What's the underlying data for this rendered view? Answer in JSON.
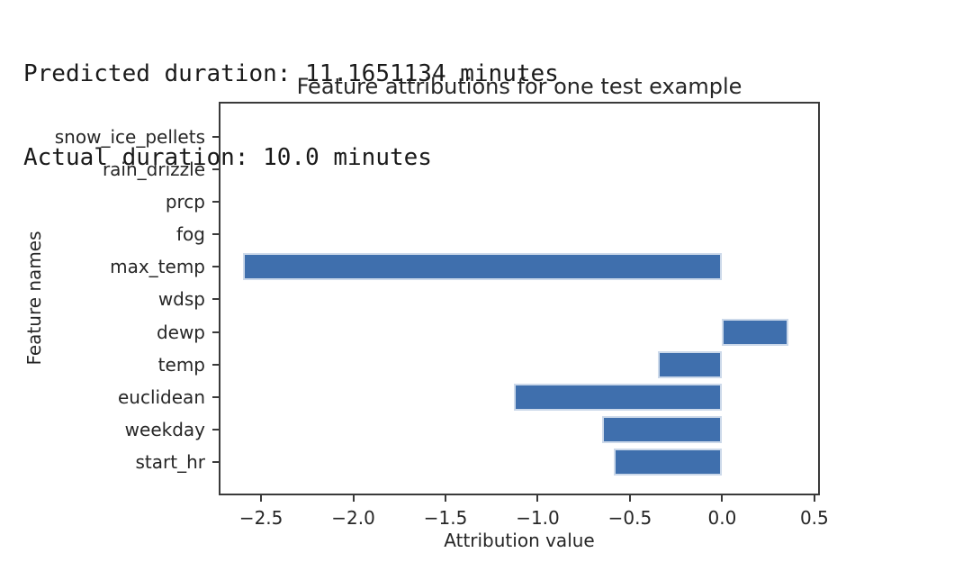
{
  "console": {
    "lines": [
      "Predicted duration: 11.1651134 minutes",
      "Actual duration: 10.0 minutes"
    ]
  },
  "chart_data": {
    "type": "bar",
    "orientation": "horizontal",
    "title": "Feature attributions for one test example",
    "xlabel": "Attribution value",
    "ylabel": "Feature names",
    "category_order": "top_to_bottom",
    "categories": [
      "snow_ice_pellets",
      "rain_drizzle",
      "prcp",
      "fog",
      "max_temp",
      "wdsp",
      "dewp",
      "temp",
      "euclidean",
      "weekday",
      "start_hr"
    ],
    "values": [
      0,
      0,
      0,
      0,
      -2.6,
      0,
      0.36,
      -0.35,
      -1.13,
      -0.65,
      -0.59
    ],
    "xticks": [
      -2.5,
      -2.0,
      -1.5,
      -1.0,
      -0.5,
      0.0,
      0.5
    ],
    "xtick_labels": [
      "−2.5",
      "−2.0",
      "−1.5",
      "−1.0",
      "−0.5",
      "0.0",
      "0.5"
    ],
    "xlim": [
      -2.73,
      0.53
    ],
    "grid": false,
    "legend": false,
    "colors": {
      "bar_fill": "#3f6fad",
      "bar_edge": "#ccd9ea",
      "axis": "#3a3a3a",
      "text": "#262626",
      "background": "#ffffff"
    }
  }
}
